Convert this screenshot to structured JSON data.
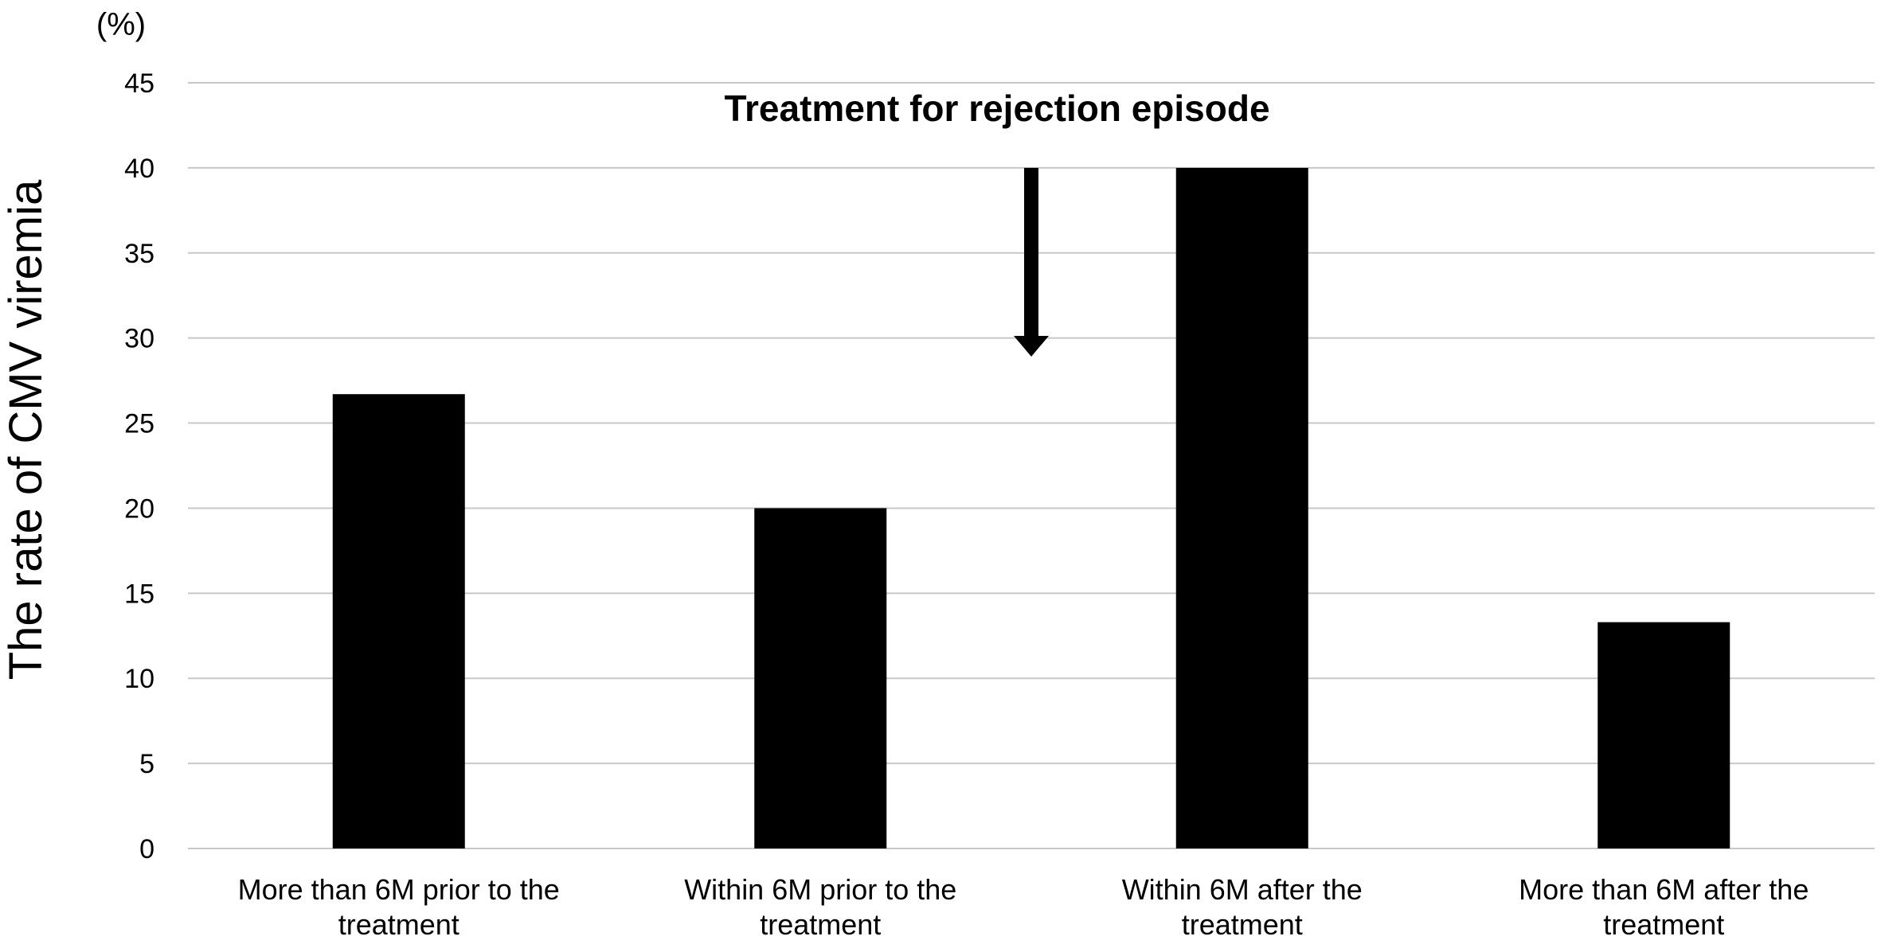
{
  "chart_data": {
    "type": "bar",
    "categories": [
      [
        "More than 6M prior to the",
        "treatment"
      ],
      [
        "Within 6M prior to the",
        "treatment"
      ],
      [
        "Within 6M after the",
        "treatment"
      ],
      [
        "More than 6M after the",
        "treatment"
      ]
    ],
    "values": [
      26.7,
      20.0,
      40.0,
      13.3
    ],
    "ylabel": "The rate of CMV viremia",
    "y_unit": "(%)",
    "ylim": [
      0,
      45
    ],
    "yticks": [
      0,
      5,
      10,
      15,
      20,
      25,
      30,
      35,
      40,
      45
    ],
    "grid": true,
    "annotation": {
      "text": "Treatment for rejection episode",
      "arrow_from_y": 40,
      "arrow_to_y": 29
    },
    "bar_color": "#000000"
  }
}
